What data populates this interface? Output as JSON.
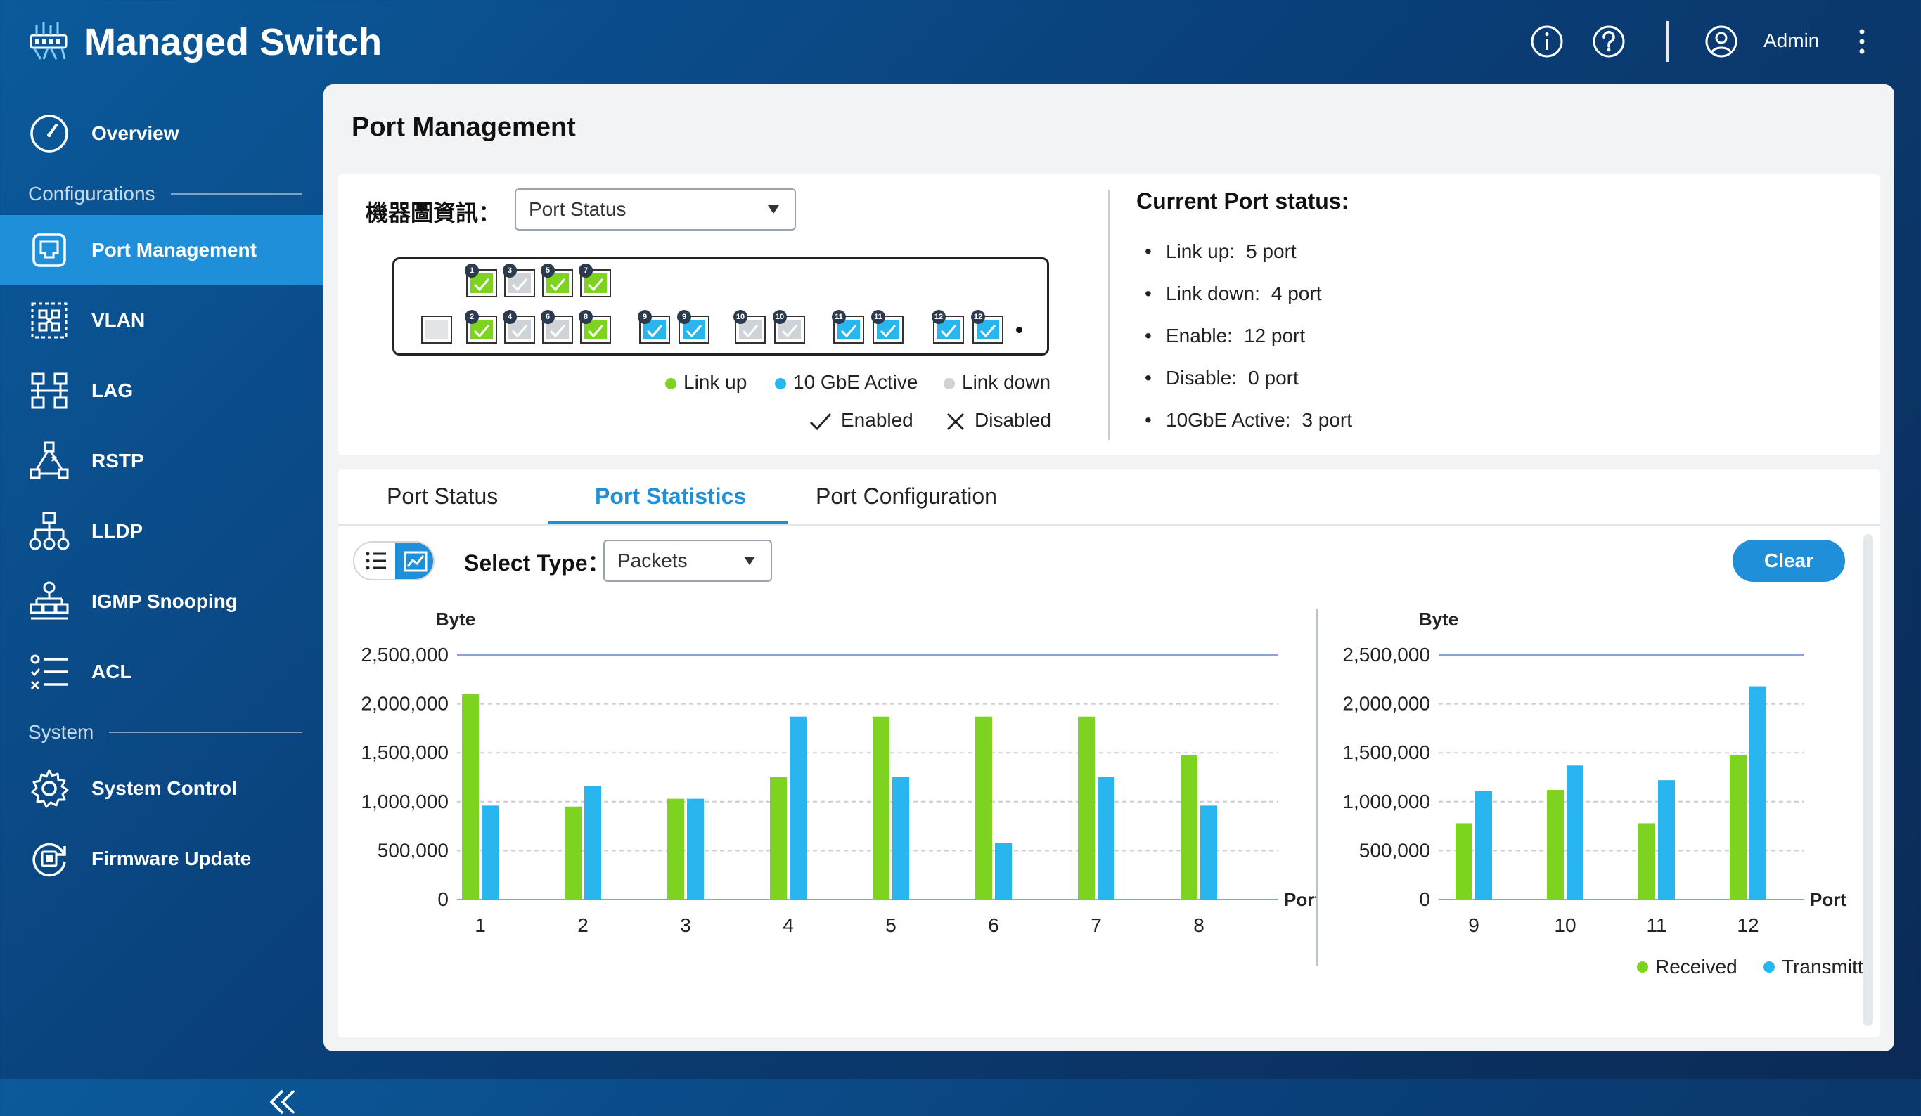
{
  "app": {
    "title": "Managed Switch",
    "user": "Admin",
    "header_icons": [
      "info-icon",
      "help-icon",
      "user-icon",
      "more-vertical-icon"
    ]
  },
  "sidebar": {
    "sections": {
      "configurations": "Configurations",
      "system": "System"
    },
    "items": [
      {
        "label": "Overview",
        "icon": "gauge-icon"
      },
      {
        "label": "Port Management",
        "icon": "port-icon",
        "active": true
      },
      {
        "label": "VLAN",
        "icon": "vlan-icon"
      },
      {
        "label": "LAG",
        "icon": "lag-icon"
      },
      {
        "label": "RSTP",
        "icon": "rstp-icon"
      },
      {
        "label": "LLDP",
        "icon": "lldp-icon"
      },
      {
        "label": "IGMP Snooping",
        "icon": "igmp-icon"
      },
      {
        "label": "ACL",
        "icon": "acl-icon"
      },
      {
        "label": "System Control",
        "icon": "gear-icon"
      },
      {
        "label": "Firmware Update",
        "icon": "firmware-icon"
      }
    ]
  },
  "page": {
    "title": "Port Management"
  },
  "device_info": {
    "label": "機器圖資訊：",
    "select_value": "Port Status",
    "top_ports": [
      {
        "num": "1",
        "state": "linkup"
      },
      {
        "num": "3",
        "state": "down"
      },
      {
        "num": "5",
        "state": "linkup"
      },
      {
        "num": "7",
        "state": "linkup"
      }
    ],
    "bottom_ports": [
      {
        "num": "2",
        "state": "linkup"
      },
      {
        "num": "4",
        "state": "down"
      },
      {
        "num": "6",
        "state": "down"
      },
      {
        "num": "8",
        "state": "linkup"
      },
      {
        "num": "9",
        "state": "10g"
      },
      {
        "num": "9",
        "state": "10g"
      },
      {
        "num": "10",
        "state": "down"
      },
      {
        "num": "10",
        "state": "down"
      },
      {
        "num": "11",
        "state": "10g"
      },
      {
        "num": "11",
        "state": "10g"
      },
      {
        "num": "12",
        "state": "10g"
      },
      {
        "num": "12",
        "state": "10g"
      }
    ],
    "legend": {
      "link_up": "Link up",
      "gbe_active": "10 GbE Active",
      "link_down": "Link down",
      "enabled": "Enabled",
      "disabled": "Disabled"
    },
    "colors": {
      "link_up": "#7ed321",
      "gbe_active": "#29b6ef",
      "link_down": "#cfd3d7"
    }
  },
  "port_status": {
    "title": "Current Port status:",
    "items": [
      {
        "key": "Link up:",
        "value": "5 port"
      },
      {
        "key": "Link down:",
        "value": "4 port"
      },
      {
        "key": "Enable:",
        "value": "12 port"
      },
      {
        "key": "Disable:",
        "value": "0 port"
      },
      {
        "key": "10GbE Active:",
        "value": "3 port"
      }
    ]
  },
  "tabs": [
    {
      "label": "Port Status"
    },
    {
      "label": "Port Statistics",
      "active": true
    },
    {
      "label": "Port Configuration"
    }
  ],
  "stats": {
    "select_label": "Select Type：",
    "select_value": "Packets",
    "clear_label": "Clear"
  },
  "chart_data": [
    {
      "type": "bar",
      "ylabel": "Byte",
      "xlabel": "Port",
      "categories": [
        "1",
        "2",
        "3",
        "4",
        "5",
        "6",
        "7",
        "8"
      ],
      "ylim": [
        0,
        2500000
      ],
      "yticks": [
        "0",
        "500,000",
        "1,000,000",
        "1,500,000",
        "2,000,000",
        "2,500,000"
      ],
      "series": [
        {
          "name": "Received",
          "color": "#7ed321",
          "values": [
            2100000,
            950000,
            1030000,
            1250000,
            1870000,
            1870000,
            1870000,
            1480000
          ]
        },
        {
          "name": "Transmitted",
          "color": "#29b6ef",
          "values": [
            960000,
            1160000,
            1030000,
            1870000,
            1250000,
            580000,
            1250000,
            960000
          ]
        }
      ]
    },
    {
      "type": "bar",
      "ylabel": "Byte",
      "xlabel": "Port",
      "categories": [
        "9",
        "10",
        "11",
        "12"
      ],
      "ylim": [
        0,
        2500000
      ],
      "yticks": [
        "0",
        "500,000",
        "1,000,000",
        "1,500,000",
        "2,000,000",
        "2,500,000"
      ],
      "series": [
        {
          "name": "Received",
          "color": "#7ed321",
          "values": [
            780000,
            1120000,
            780000,
            1480000
          ]
        },
        {
          "name": "Transmitted",
          "color": "#29b6ef",
          "values": [
            1110000,
            1370000,
            1220000,
            2180000
          ]
        }
      ],
      "legend_position": "bottom-right"
    }
  ]
}
